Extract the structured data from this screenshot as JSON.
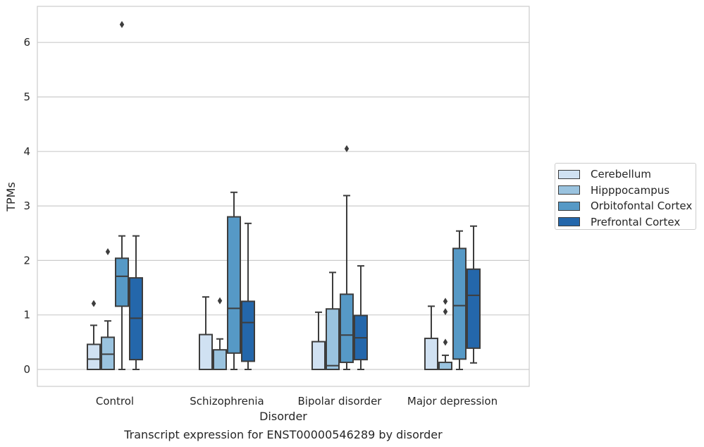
{
  "chart_data": {
    "type": "box",
    "title": "Transcript expression for ENST00000546289 by disorder",
    "xlabel": "Disorder",
    "ylabel": "TPMs",
    "ylim": [
      -0.3,
      6.65
    ],
    "yticks": [
      "0",
      "1",
      "2",
      "3",
      "4",
      "5",
      "6"
    ],
    "grid": "horizontal",
    "legend_position": "right",
    "categories": [
      "Control",
      "Schizophrenia",
      "Bipolar disorder",
      "Major depression"
    ],
    "series": [
      {
        "name": "Cerebellum",
        "color": "#d0e1f2",
        "boxes": [
          {
            "whislo": 0.0,
            "q1": 0.0,
            "med": 0.19,
            "q3": 0.46,
            "whishi": 0.81,
            "fliers": [
              1.21
            ]
          },
          {
            "whislo": 0.0,
            "q1": 0.0,
            "med": 0.0,
            "q3": 0.64,
            "whishi": 1.33,
            "fliers": []
          },
          {
            "whislo": 0.0,
            "q1": 0.0,
            "med": 0.0,
            "q3": 0.51,
            "whishi": 1.05,
            "fliers": []
          },
          {
            "whislo": 0.0,
            "q1": 0.0,
            "med": 0.0,
            "q3": 0.57,
            "whishi": 1.16,
            "fliers": []
          }
        ]
      },
      {
        "name": "Hipppocampus",
        "color": "#9ac3df",
        "boxes": [
          {
            "whislo": 0.0,
            "q1": 0.0,
            "med": 0.28,
            "q3": 0.59,
            "whishi": 0.89,
            "fliers": [
              2.16
            ]
          },
          {
            "whislo": 0.0,
            "q1": 0.0,
            "med": 0.0,
            "q3": 0.36,
            "whishi": 0.56,
            "fliers": [
              1.26
            ]
          },
          {
            "whislo": 0.0,
            "q1": 0.0,
            "med": 0.07,
            "q3": 1.11,
            "whishi": 1.78,
            "fliers": []
          },
          {
            "whislo": 0.0,
            "q1": 0.0,
            "med": 0.0,
            "q3": 0.13,
            "whishi": 0.26,
            "fliers": [
              0.5,
              1.06,
              1.25
            ]
          }
        ]
      },
      {
        "name": "Orbitofontal Cortex",
        "color": "#5699c6",
        "boxes": [
          {
            "whislo": 0.0,
            "q1": 1.16,
            "med": 1.71,
            "q3": 2.04,
            "whishi": 2.45,
            "fliers": [
              6.33
            ]
          },
          {
            "whislo": 0.0,
            "q1": 0.3,
            "med": 1.12,
            "q3": 2.8,
            "whishi": 3.25,
            "fliers": []
          },
          {
            "whislo": 0.0,
            "q1": 0.13,
            "med": 0.63,
            "q3": 1.38,
            "whishi": 3.19,
            "fliers": [
              4.05
            ]
          },
          {
            "whislo": 0.0,
            "q1": 0.19,
            "med": 1.17,
            "q3": 2.22,
            "whishi": 2.54,
            "fliers": []
          }
        ]
      },
      {
        "name": "Prefrontal Cortex",
        "color": "#2467ab",
        "boxes": [
          {
            "whislo": 0.0,
            "q1": 0.18,
            "med": 0.94,
            "q3": 1.68,
            "whishi": 2.45,
            "fliers": []
          },
          {
            "whislo": 0.0,
            "q1": 0.15,
            "med": 0.86,
            "q3": 1.25,
            "whishi": 2.68,
            "fliers": []
          },
          {
            "whislo": 0.0,
            "q1": 0.18,
            "med": 0.58,
            "q3": 0.99,
            "whishi": 1.9,
            "fliers": []
          },
          {
            "whislo": 0.12,
            "q1": 0.39,
            "med": 1.36,
            "q3": 1.84,
            "whishi": 2.63,
            "fliers": []
          }
        ]
      }
    ]
  }
}
